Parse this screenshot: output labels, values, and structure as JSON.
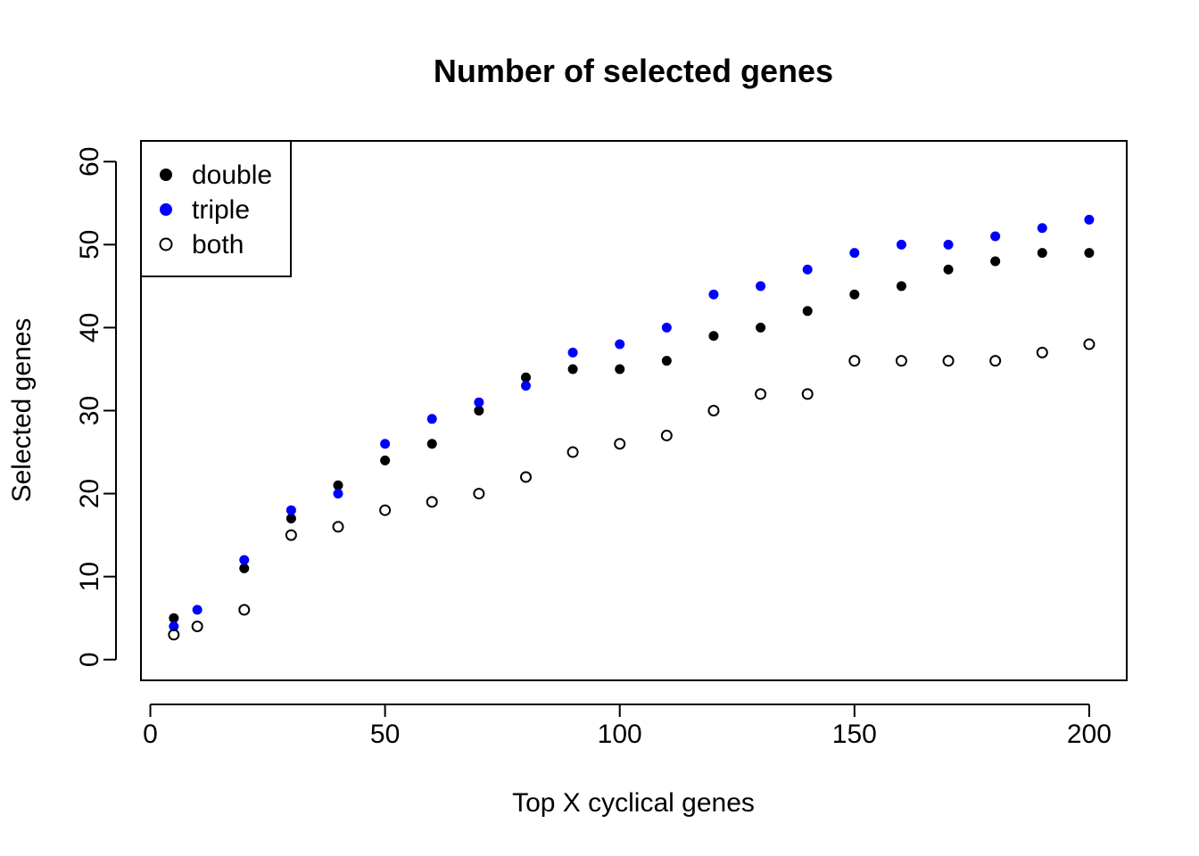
{
  "chart_data": {
    "type": "scatter",
    "title": "Number of selected genes",
    "xlabel": "Top X cyclical genes",
    "ylabel": "Selected genes",
    "xlim": [
      -2,
      208
    ],
    "ylim": [
      -2.5,
      62.5
    ],
    "x_ticks": [
      0,
      50,
      100,
      150,
      200
    ],
    "y_ticks": [
      0,
      10,
      20,
      30,
      40,
      50,
      60
    ],
    "grid": false,
    "legend_position": "top-left",
    "x": [
      5,
      10,
      20,
      30,
      40,
      50,
      60,
      70,
      80,
      90,
      100,
      110,
      120,
      130,
      140,
      150,
      160,
      170,
      180,
      190,
      200
    ],
    "series": [
      {
        "name": "double",
        "color": "#000000",
        "marker": "filled-circle",
        "x": [
          5,
          20,
          30,
          40,
          50,
          60,
          70,
          80,
          90,
          100,
          110,
          120,
          130,
          140,
          150,
          160,
          170,
          180,
          190,
          200
        ],
        "values": [
          5,
          11,
          17,
          21,
          24,
          26,
          30,
          34,
          35,
          35,
          36,
          39,
          40,
          42,
          44,
          45,
          47,
          48,
          49,
          49
        ]
      },
      {
        "name": "triple",
        "color": "#0000ff",
        "marker": "filled-circle",
        "x": [
          5,
          10,
          20,
          30,
          40,
          50,
          60,
          70,
          80,
          90,
          100,
          110,
          120,
          130,
          140,
          150,
          160,
          170,
          180,
          190,
          200
        ],
        "values": [
          4,
          6,
          12,
          18,
          20,
          26,
          29,
          31,
          33,
          37,
          38,
          40,
          44,
          45,
          47,
          49,
          50,
          50,
          51,
          52,
          53
        ]
      },
      {
        "name": "both",
        "color": "#000000",
        "marker": "open-circle",
        "x": [
          5,
          10,
          20,
          30,
          40,
          50,
          60,
          70,
          80,
          90,
          100,
          110,
          120,
          130,
          140,
          150,
          160,
          170,
          180,
          190,
          200
        ],
        "values": [
          3,
          4,
          6,
          15,
          16,
          18,
          19,
          20,
          22,
          25,
          26,
          27,
          30,
          32,
          32,
          36,
          36,
          36,
          36,
          37,
          38
        ]
      }
    ]
  }
}
